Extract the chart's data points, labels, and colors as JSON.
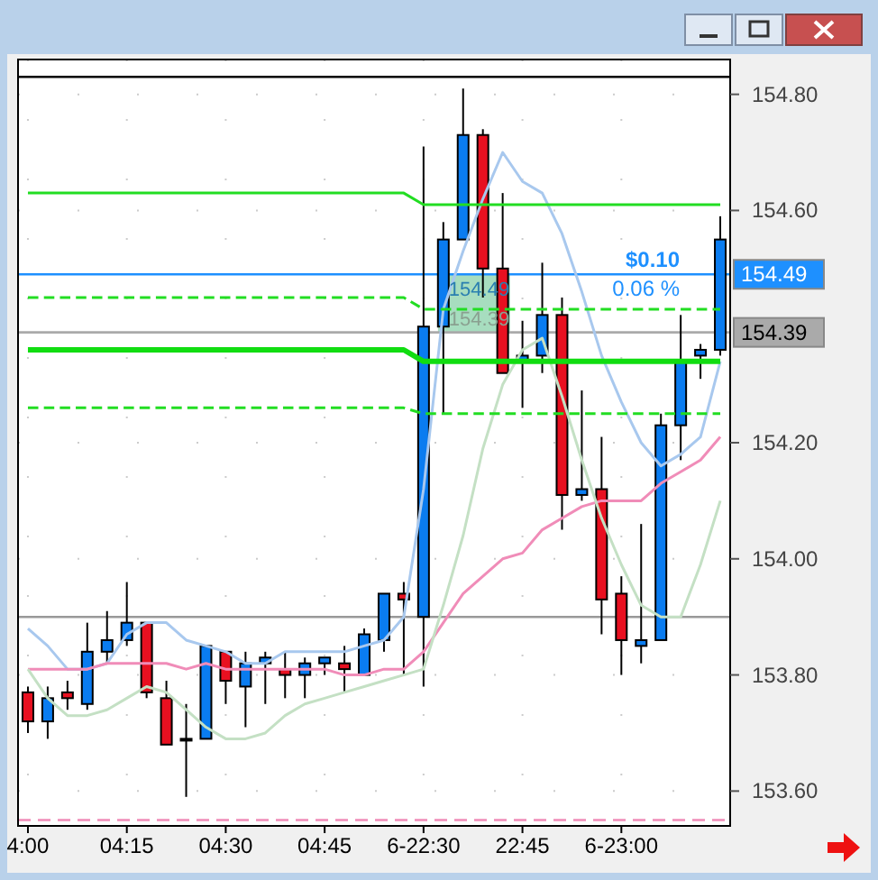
{
  "chart_data": {
    "type": "candlestick",
    "categories": [
      "4:00",
      null,
      null,
      null,
      null,
      "04:15",
      null,
      null,
      null,
      null,
      "04:30",
      null,
      null,
      null,
      null,
      "04:45",
      null,
      null,
      null,
      null,
      "6-22:30",
      null,
      null,
      null,
      null,
      "22:45",
      null,
      null,
      null,
      null,
      "6-23:00",
      null,
      null,
      null,
      null,
      null
    ],
    "ohlc": [
      [
        153.77,
        153.78,
        153.7,
        153.72
      ],
      [
        153.72,
        153.78,
        153.69,
        153.76
      ],
      [
        153.77,
        153.79,
        153.74,
        153.76
      ],
      [
        153.75,
        153.89,
        153.74,
        153.84
      ],
      [
        153.84,
        153.91,
        153.82,
        153.86
      ],
      [
        153.86,
        153.96,
        153.85,
        153.89
      ],
      [
        153.89,
        153.89,
        153.76,
        153.77
      ],
      [
        153.76,
        153.79,
        153.68,
        153.68
      ],
      [
        153.69,
        153.75,
        153.59,
        153.69
      ],
      [
        153.69,
        153.85,
        153.69,
        153.85
      ],
      [
        153.84,
        153.84,
        153.75,
        153.79
      ],
      [
        153.78,
        153.84,
        153.71,
        153.82
      ],
      [
        153.82,
        153.84,
        153.75,
        153.83
      ],
      [
        153.81,
        153.84,
        153.76,
        153.8
      ],
      [
        153.8,
        153.83,
        153.76,
        153.82
      ],
      [
        153.82,
        153.83,
        153.8,
        153.83
      ],
      [
        153.82,
        153.85,
        153.77,
        153.81
      ],
      [
        153.8,
        153.88,
        153.8,
        153.87
      ],
      [
        153.86,
        153.94,
        153.84,
        153.94
      ],
      [
        153.94,
        153.96,
        153.8,
        153.93
      ],
      [
        153.9,
        154.71,
        153.78,
        154.4
      ],
      [
        154.4,
        154.58,
        154.25,
        154.55
      ],
      [
        154.55,
        154.81,
        154.55,
        154.73
      ],
      [
        154.73,
        154.74,
        154.45,
        154.5
      ],
      [
        154.5,
        154.63,
        154.32,
        154.32
      ],
      [
        154.34,
        154.41,
        154.26,
        154.35
      ],
      [
        154.35,
        154.51,
        154.32,
        154.42
      ],
      [
        154.42,
        154.45,
        154.05,
        154.11
      ],
      [
        154.11,
        154.29,
        154.1,
        154.12
      ],
      [
        154.12,
        154.21,
        153.87,
        153.93
      ],
      [
        153.94,
        153.97,
        153.8,
        153.86
      ],
      [
        153.85,
        154.06,
        153.82,
        153.86
      ],
      [
        153.86,
        154.25,
        153.86,
        154.23
      ],
      [
        154.23,
        154.42,
        154.17,
        154.34
      ],
      [
        154.35,
        154.37,
        154.31,
        154.36
      ],
      [
        154.36,
        154.59,
        154.35,
        154.55
      ]
    ],
    "colors": [
      "#e81020",
      "#0a7cf0",
      "#e81020",
      "#0a7cf0",
      "#0a7cf0",
      "#0a7cf0",
      "#e81020",
      "#e81020",
      "#000000",
      "#0a7cf0",
      "#e81020",
      "#0a7cf0",
      "#0a7cf0",
      "#e81020",
      "#0a7cf0",
      "#0a7cf0",
      "#e81020",
      "#0a7cf0",
      "#0a7cf0",
      "#e81020",
      "#0a7cf0",
      "#0a7cf0",
      "#0a7cf0",
      "#e81020",
      "#e81020",
      "#0a7cf0",
      "#0a7cf0",
      "#e81020",
      "#0a7cf0",
      "#e81020",
      "#e81020",
      "#0a7cf0",
      "#0a7cf0",
      "#0a7cf0",
      "#0a7cf0",
      "#0a7cf0"
    ],
    "series": [
      {
        "type": "line",
        "color": "#a8c8ee",
        "values": [
          153.88,
          153.85,
          153.81,
          153.81,
          153.82,
          153.87,
          153.89,
          153.89,
          153.86,
          153.85,
          153.84,
          153.82,
          153.82,
          153.84,
          153.84,
          153.84,
          153.84,
          153.85,
          153.86,
          153.9,
          154.12,
          154.43,
          154.53,
          154.62,
          154.7,
          154.65,
          154.63,
          154.56,
          154.46,
          154.35,
          154.27,
          154.2,
          154.16,
          154.18,
          154.21,
          154.34
        ]
      },
      {
        "type": "line",
        "color": "#f08cb8",
        "values": [
          153.81,
          153.81,
          153.81,
          153.81,
          153.82,
          153.82,
          153.82,
          153.82,
          153.81,
          153.82,
          153.81,
          153.81,
          153.81,
          153.81,
          153.81,
          153.81,
          153.8,
          153.8,
          153.81,
          153.81,
          153.84,
          153.89,
          153.94,
          153.97,
          154.0,
          154.01,
          154.05,
          154.07,
          154.09,
          154.1,
          154.1,
          154.1,
          154.13,
          154.15,
          154.17,
          154.21
        ]
      },
      {
        "type": "line",
        "color": "#c4e0c4",
        "values": [
          153.81,
          153.76,
          153.73,
          153.73,
          153.74,
          153.76,
          153.78,
          153.77,
          153.74,
          153.71,
          153.69,
          153.69,
          153.7,
          153.73,
          153.75,
          153.76,
          153.77,
          153.78,
          153.79,
          153.8,
          153.81,
          153.92,
          154.04,
          154.19,
          154.3,
          154.36,
          154.38,
          154.28,
          154.17,
          154.07,
          153.99,
          153.92,
          153.9,
          153.9,
          153.99,
          154.1
        ]
      },
      {
        "type": "line",
        "color": "#22dd22",
        "values": [
          154.63,
          154.63,
          154.63,
          154.63,
          154.63,
          154.63,
          154.63,
          154.63,
          154.63,
          154.63,
          154.63,
          154.63,
          154.63,
          154.63,
          154.63,
          154.63,
          154.63,
          154.63,
          154.63,
          154.63,
          154.61,
          154.61,
          154.61,
          154.61,
          154.61,
          154.61,
          154.61,
          154.61,
          154.61,
          154.61,
          154.61,
          154.61,
          154.61,
          154.61,
          154.61,
          154.61
        ]
      },
      {
        "type": "line",
        "color": "#22dd22",
        "line_style": "dashed",
        "values": [
          154.45,
          154.45,
          154.45,
          154.45,
          154.45,
          154.45,
          154.45,
          154.45,
          154.45,
          154.45,
          154.45,
          154.45,
          154.45,
          154.45,
          154.45,
          154.45,
          154.45,
          154.45,
          154.45,
          154.45,
          154.43,
          154.43,
          154.43,
          154.43,
          154.43,
          154.43,
          154.43,
          154.43,
          154.43,
          154.43,
          154.43,
          154.43,
          154.43,
          154.43,
          154.43,
          154.43
        ]
      },
      {
        "type": "line",
        "color": "#11dd11",
        "values": [
          154.36,
          154.36,
          154.36,
          154.36,
          154.36,
          154.36,
          154.36,
          154.36,
          154.36,
          154.36,
          154.36,
          154.36,
          154.36,
          154.36,
          154.36,
          154.36,
          154.36,
          154.36,
          154.36,
          154.36,
          154.34,
          154.34,
          154.34,
          154.34,
          154.34,
          154.34,
          154.34,
          154.34,
          154.34,
          154.34,
          154.34,
          154.34,
          154.34,
          154.34,
          154.34,
          154.34
        ]
      },
      {
        "type": "line",
        "color": "#22dd22",
        "line_style": "dashed",
        "values": [
          154.26,
          154.26,
          154.26,
          154.26,
          154.26,
          154.26,
          154.26,
          154.26,
          154.26,
          154.26,
          154.26,
          154.26,
          154.26,
          154.26,
          154.26,
          154.26,
          154.26,
          154.26,
          154.26,
          154.26,
          154.25,
          154.25,
          154.25,
          154.25,
          154.25,
          154.25,
          154.25,
          154.25,
          154.25,
          154.25,
          154.25,
          154.25,
          154.25,
          154.25,
          154.25,
          154.25
        ]
      }
    ],
    "ref_lines": [
      {
        "axis": "y",
        "value": 154.49,
        "label": "154.49",
        "color": "#1e90ff"
      },
      {
        "axis": "y",
        "value": 154.39,
        "label": "154.39",
        "color": "#aaaaaa"
      },
      {
        "axis": "y",
        "value": 153.9,
        "color": "#999999"
      },
      {
        "axis": "y",
        "value": 154.83,
        "color": "#000000"
      },
      {
        "axis": "y",
        "value": 153.55,
        "color": "#f08cb8",
        "line_style": "dashed"
      }
    ],
    "annotations": [
      {
        "text": "$0.10",
        "y": 154.49
      },
      {
        "text": "0.06 %",
        "y": 154.49
      },
      {
        "text": "154.49",
        "y": 154.49
      },
      {
        "text": "154.39",
        "y": 154.39
      }
    ],
    "ylim": [
      153.54,
      154.86
    ],
    "yticks": [
      {
        "value": 153.6,
        "label": "153.60"
      },
      {
        "value": 153.8,
        "label": "153.80"
      },
      {
        "value": 154.0,
        "label": "154.00"
      },
      {
        "value": 154.2,
        "label": "154.20"
      },
      {
        "value": 154.6,
        "label": "154.60"
      },
      {
        "value": 154.8,
        "label": "154.80"
      }
    ],
    "grid": true
  }
}
